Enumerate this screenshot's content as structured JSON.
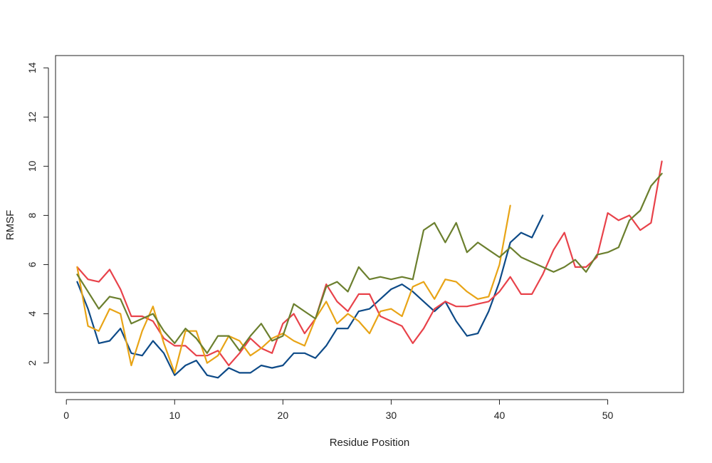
{
  "chart_data": {
    "type": "line",
    "title": "",
    "xlabel": "Residue Position",
    "ylabel": "RMSF",
    "xlim": [
      -1,
      57
    ],
    "ylim": [
      0.8,
      14.5
    ],
    "xticks": [
      0,
      10,
      20,
      30,
      40,
      50
    ],
    "yticks": [
      2,
      4,
      6,
      8,
      10,
      12,
      14
    ],
    "grid": false,
    "colors": {
      "blue": "#0d4a87",
      "red": "#e8424a",
      "orange": "#e8a416",
      "green": "#6b7f2e"
    },
    "series": [
      {
        "color": "#0d4a87",
        "x": [
          1,
          2,
          3,
          4,
          5,
          6,
          7,
          8,
          9,
          10,
          11,
          12,
          13,
          14,
          15,
          16,
          17,
          18,
          19,
          20,
          21,
          22,
          23,
          24,
          25,
          26,
          27,
          28,
          29,
          30,
          31,
          32,
          33,
          34,
          35,
          36,
          37,
          38,
          39,
          40,
          41,
          42,
          43,
          44
        ],
        "values": [
          5.3,
          4.2,
          2.8,
          2.9,
          3.4,
          2.4,
          2.3,
          2.9,
          2.4,
          1.5,
          1.9,
          2.1,
          1.5,
          1.4,
          1.8,
          1.6,
          1.6,
          1.9,
          1.8,
          1.9,
          2.4,
          2.4,
          2.2,
          2.7,
          3.4,
          3.4,
          4.1,
          4.2,
          4.6,
          5.0,
          5.2,
          4.9,
          4.5,
          4.1,
          4.5,
          3.7,
          3.1,
          3.2,
          4.1,
          5.3,
          6.9,
          7.3,
          7.1,
          8.0
        ]
      },
      {
        "color": "#e8424a",
        "x": [
          1,
          2,
          3,
          4,
          5,
          6,
          7,
          8,
          9,
          10,
          11,
          12,
          13,
          14,
          15,
          16,
          17,
          18,
          19,
          20,
          21,
          22,
          23,
          24,
          25,
          26,
          27,
          28,
          29,
          30,
          31,
          32,
          33,
          34,
          35,
          36,
          37,
          38,
          39,
          40,
          41,
          42,
          43,
          44,
          45,
          46,
          47,
          48,
          49,
          50,
          51,
          52,
          53,
          54,
          55
        ],
        "values": [
          5.9,
          5.4,
          5.3,
          5.8,
          5.0,
          3.9,
          3.9,
          3.7,
          3.0,
          2.7,
          2.7,
          2.3,
          2.3,
          2.5,
          1.9,
          2.4,
          3.0,
          2.6,
          2.4,
          3.6,
          4.0,
          3.2,
          3.8,
          5.2,
          4.5,
          4.1,
          4.8,
          4.8,
          3.9,
          3.7,
          3.5,
          2.8,
          3.4,
          4.2,
          4.5,
          4.3,
          4.3,
          4.4,
          4.5,
          4.9,
          5.5,
          4.8,
          4.8,
          5.6,
          6.6,
          7.3,
          5.9,
          5.9,
          6.3,
          8.1,
          7.8,
          8.0,
          7.4,
          7.7,
          10.2
        ]
      },
      {
        "color": "#e8a416",
        "x": [
          1,
          2,
          3,
          4,
          5,
          6,
          7,
          8,
          9,
          10,
          11,
          12,
          13,
          14,
          15,
          16,
          17,
          18,
          19,
          20,
          21,
          22,
          23,
          24,
          25,
          26,
          27,
          28,
          29,
          30,
          31,
          32,
          33,
          34,
          35,
          36,
          37,
          38,
          39,
          40,
          41
        ],
        "values": [
          5.9,
          3.5,
          3.3,
          4.2,
          4.0,
          1.9,
          3.3,
          4.3,
          2.8,
          1.6,
          3.3,
          3.3,
          2.0,
          2.3,
          3.1,
          2.9,
          2.3,
          2.6,
          3.0,
          3.2,
          2.9,
          2.7,
          3.8,
          4.5,
          3.6,
          4.0,
          3.7,
          3.2,
          4.1,
          4.2,
          3.9,
          5.1,
          5.3,
          4.6,
          5.4,
          5.3,
          4.9,
          4.6,
          4.7,
          6.0,
          8.4
        ]
      },
      {
        "color": "#6b7f2e",
        "x": [
          1,
          2,
          3,
          4,
          5,
          6,
          7,
          8,
          9,
          10,
          11,
          12,
          13,
          14,
          15,
          16,
          17,
          18,
          19,
          20,
          21,
          22,
          23,
          24,
          25,
          26,
          27,
          28,
          29,
          30,
          31,
          32,
          33,
          34,
          35,
          36,
          37,
          38,
          39,
          40,
          41,
          42,
          43,
          44,
          45,
          46,
          47,
          48,
          49,
          50,
          51,
          52,
          53,
          54,
          55
        ],
        "values": [
          5.6,
          4.9,
          4.2,
          4.7,
          4.6,
          3.6,
          3.8,
          4.0,
          3.3,
          2.8,
          3.4,
          3.0,
          2.4,
          3.1,
          3.1,
          2.5,
          3.1,
          3.6,
          2.9,
          3.1,
          4.4,
          4.1,
          3.8,
          5.1,
          5.3,
          4.9,
          5.9,
          5.4,
          5.5,
          5.4,
          5.5,
          5.4,
          7.4,
          7.7,
          6.9,
          7.7,
          6.5,
          6.9,
          6.6,
          6.3,
          6.7,
          6.3,
          6.1,
          5.9,
          5.7,
          5.9,
          6.2,
          5.7,
          6.4,
          6.5,
          6.7,
          7.8,
          8.2,
          9.2,
          9.7
        ]
      }
    ]
  }
}
